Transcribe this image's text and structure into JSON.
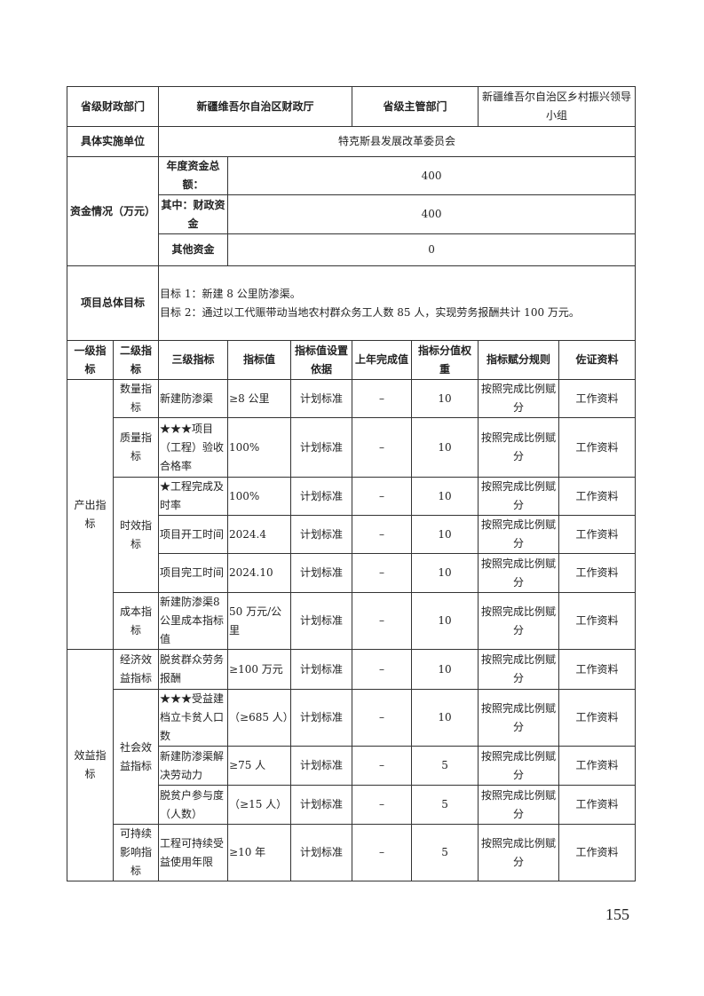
{
  "header": {
    "finance_dept_label": "省级财政部门",
    "finance_dept_value": "新疆维吾尔自治区财政厅",
    "competent_dept_label": "省级主管部门",
    "competent_dept_value": "新疆维吾尔自治区乡村振兴领导小组",
    "implementer_label": "具体实施单位",
    "implementer_value": "特克斯县发展改革委员会"
  },
  "funds": {
    "label": "资金情况（万元）",
    "annual_total_label": "年度资金总额：",
    "annual_total_value": "400",
    "fiscal_label": "其中：财政资金",
    "fiscal_value": "400",
    "other_label": "其他资金",
    "other_value": "0"
  },
  "objective": {
    "label": "项目总体目标",
    "lines": [
      "目标 1：新建 8 公里防渗渠。",
      "目标 2：通过以工代赈带动当地农村群众务工人数 85 人，实现劳务报酬共计 100 万元。"
    ]
  },
  "columns": [
    "一级指标",
    "二级指标",
    "三级指标",
    "指标值",
    "指标值设置依据",
    "上年完成值",
    "指标分值权重",
    "指标赋分规则",
    "佐证资料"
  ],
  "indicators": [
    {
      "level1": "产出指标",
      "groups": [
        {
          "level2": "数量指标",
          "items": [
            {
              "level3": "新建防渗渠",
              "value": "≥8 公里",
              "basis": "计划标准",
              "last": "–",
              "weight": "10",
              "rule": "按照完成比例赋分",
              "evidence": "工作资料"
            }
          ]
        },
        {
          "level2": "质量指标",
          "items": [
            {
              "level3": "★★★项目（工程）验收合格率",
              "value": "100%",
              "basis": "计划标准",
              "last": "–",
              "weight": "10",
              "rule": "按照完成比例赋分",
              "evidence": "工作资料"
            }
          ]
        },
        {
          "level2": "时效指标",
          "items": [
            {
              "level3": "★工程完成及时率",
              "value": "100%",
              "basis": "计划标准",
              "last": "–",
              "weight": "10",
              "rule": "按照完成比例赋分",
              "evidence": "工作资料"
            },
            {
              "level3": "项目开工时间",
              "value": "2024.4",
              "basis": "计划标准",
              "last": "–",
              "weight": "10",
              "rule": "按照完成比例赋分",
              "evidence": "工作资料"
            },
            {
              "level3": "项目完工时间",
              "value": "2024.10",
              "basis": "计划标准",
              "last": "–",
              "weight": "10",
              "rule": "按照完成比例赋分",
              "evidence": "工作资料"
            }
          ]
        },
        {
          "level2": "成本指标",
          "items": [
            {
              "level3": "新建防渗渠8公里成本指标值",
              "value": "50 万元/公里",
              "basis": "计划标准",
              "last": "–",
              "weight": "10",
              "rule": "按照完成比例赋分",
              "evidence": "工作资料"
            }
          ]
        }
      ]
    },
    {
      "level1": "效益指标",
      "groups": [
        {
          "level2": "经济效益指标",
          "items": [
            {
              "level3": "脱贫群众劳务报酬",
              "value": "≥100 万元",
              "basis": "计划标准",
              "last": "–",
              "weight": "10",
              "rule": "按照完成比例赋分",
              "evidence": "工作资料"
            }
          ]
        },
        {
          "level2": "社会效益指标",
          "items": [
            {
              "level3": "★★★受益建档立卡贫人口数",
              "value": "（≥685 人）",
              "basis": "计划标准",
              "last": "–",
              "weight": "10",
              "rule": "按照完成比例赋分",
              "evidence": "工作资料"
            },
            {
              "level3": "新建防渗渠解决劳动力",
              "value": "≥75 人",
              "basis": "计划标准",
              "last": "–",
              "weight": "5",
              "rule": "按照完成比例赋分",
              "evidence": "工作资料"
            },
            {
              "level3": "脱贫户参与度（人数）",
              "value": "（≥15 人）",
              "basis": "计划标准",
              "last": "–",
              "weight": "5",
              "rule": "按照完成比例赋分",
              "evidence": "工作资料"
            }
          ]
        },
        {
          "level2": "可持续影响指标",
          "items": [
            {
              "level3": "工程可持续受益使用年限",
              "value": "≥10 年",
              "basis": "计划标准",
              "last": "–",
              "weight": "5",
              "rule": "按照完成比例赋分",
              "evidence": "工作资料"
            }
          ]
        }
      ]
    }
  ],
  "page_number": "155"
}
